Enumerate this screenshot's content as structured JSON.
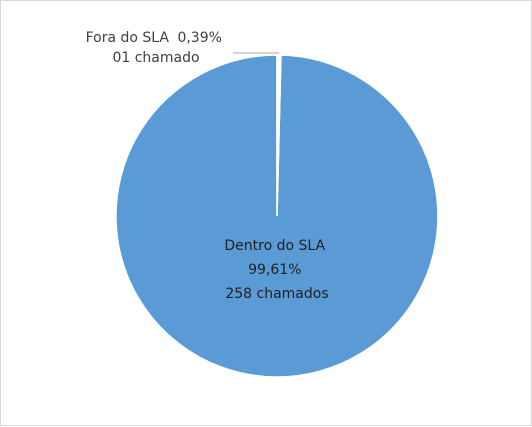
{
  "chart_data": {
    "type": "pie",
    "title": "",
    "slices": [
      {
        "name": "Fora do SLA",
        "percent_label": "0,39%",
        "count_label": "01 chamado",
        "percent": 0.39,
        "count": 1,
        "color": "#ffffff"
      },
      {
        "name": "Dentro do SLA",
        "percent_label": "99,61%",
        "count_label": "258 chamados",
        "percent": 99.61,
        "count": 258,
        "color": "#5b9bd5"
      }
    ],
    "legend": "none"
  },
  "colors": {
    "slice_border": "#ffffff",
    "label_inside": "#1f1f1f",
    "label_outside": "#404040",
    "leader_line": "#a6a6a6"
  }
}
